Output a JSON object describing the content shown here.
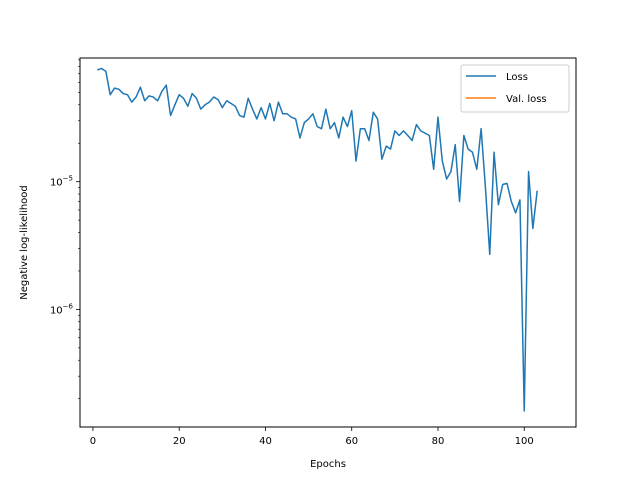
{
  "chart_data": {
    "type": "line",
    "xlabel": "Epochs",
    "ylabel": "Negative log-likelihood",
    "xlim": [
      -3,
      112
    ],
    "ylim": [
      1.2e-07,
      9.3e-05
    ],
    "yscale": "log",
    "x_ticks": [
      {
        "value": 0,
        "label": "0"
      },
      {
        "value": 20,
        "label": "20"
      },
      {
        "value": 40,
        "label": "40"
      },
      {
        "value": 60,
        "label": "60"
      },
      {
        "value": 80,
        "label": "80"
      },
      {
        "value": 100,
        "label": "100"
      }
    ],
    "y_ticks": [
      {
        "value": 1e-06,
        "base": "10",
        "exp": "−6"
      },
      {
        "value": 1e-05,
        "base": "10",
        "exp": "−5"
      }
    ],
    "legend": {
      "position": "upper right"
    },
    "colors": {
      "loss": "#1f77b4",
      "val_loss": "#ff7f0e"
    },
    "series": [
      {
        "name": "Loss",
        "x": [
          1,
          2,
          3,
          4,
          5,
          6,
          7,
          8,
          9,
          10,
          11,
          12,
          13,
          14,
          15,
          16,
          17,
          18,
          19,
          20,
          21,
          22,
          23,
          24,
          25,
          26,
          27,
          28,
          29,
          30,
          31,
          32,
          33,
          34,
          35,
          36,
          37,
          38,
          39,
          40,
          41,
          42,
          43,
          44,
          45,
          46,
          47,
          48,
          49,
          50,
          51,
          52,
          53,
          54,
          55,
          56,
          57,
          58,
          59,
          60,
          61,
          62,
          63,
          64,
          65,
          66,
          67,
          68,
          69,
          70,
          71,
          72,
          73,
          74,
          75,
          76,
          77,
          78,
          79,
          80,
          81,
          82,
          83,
          84,
          85,
          86,
          87,
          88,
          89,
          90,
          91,
          92,
          93,
          94,
          95,
          96,
          97,
          98,
          99,
          100,
          101,
          102,
          103
        ],
        "values": [
          7.5e-05,
          7.7e-05,
          7.3e-05,
          4.8e-05,
          5.4e-05,
          5.3e-05,
          4.9e-05,
          4.8e-05,
          4.2e-05,
          4.6e-05,
          5.5e-05,
          4.3e-05,
          4.7e-05,
          4.6e-05,
          4.3e-05,
          5.1e-05,
          5.7e-05,
          3.3e-05,
          4e-05,
          4.8e-05,
          4.5e-05,
          3.9e-05,
          4.9e-05,
          4.5e-05,
          3.7e-05,
          4e-05,
          4.2e-05,
          4.6e-05,
          4.4e-05,
          3.8e-05,
          4.3e-05,
          4.1e-05,
          3.9e-05,
          3.3e-05,
          3.2e-05,
          4.5e-05,
          3.7e-05,
          3.1e-05,
          3.8e-05,
          3.1e-05,
          4.1e-05,
          3e-05,
          4.2e-05,
          3.4e-05,
          3.4e-05,
          3.2e-05,
          3.1e-05,
          2.2e-05,
          2.9e-05,
          3.1e-05,
          3.4e-05,
          2.7e-05,
          2.6e-05,
          3.7e-05,
          2.6e-05,
          2.9e-05,
          2.2e-05,
          3.2e-05,
          2.7e-05,
          3.6e-05,
          1.45e-05,
          2.6e-05,
          2.6e-05,
          2.1e-05,
          3.5e-05,
          3.1e-05,
          1.5e-05,
          1.9e-05,
          1.8e-05,
          2.5e-05,
          2.3e-05,
          2.5e-05,
          2.3e-05,
          2.1e-05,
          2.8e-05,
          2.5e-05,
          2.4e-05,
          2.3e-05,
          1.25e-05,
          3.2e-05,
          1.45e-05,
          1.05e-05,
          1.2e-05,
          1.95e-05,
          7e-06,
          2.3e-05,
          1.8e-05,
          1.7e-05,
          1.25e-05,
          2.6e-05,
          9e-06,
          2.7e-06,
          1.7e-05,
          6.6e-06,
          9.5e-06,
          9.7e-06,
          7e-06,
          5.7e-06,
          7.2e-06,
          1.6e-07,
          1.2e-05,
          4.3e-06,
          8.5e-06
        ]
      },
      {
        "name": "Val. loss",
        "x": [],
        "values": []
      }
    ]
  }
}
